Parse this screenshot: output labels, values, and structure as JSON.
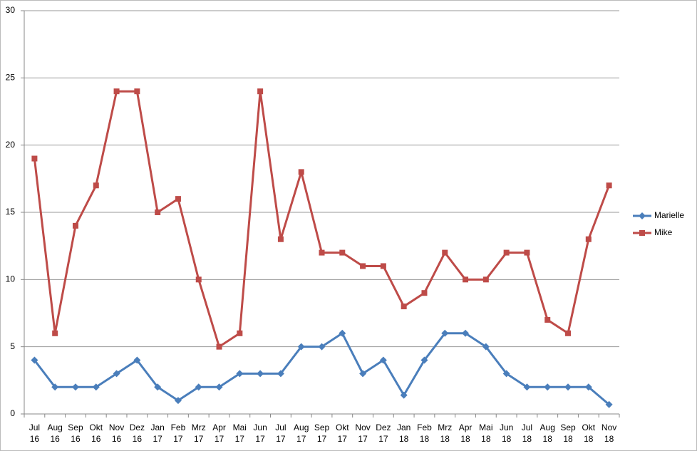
{
  "chart_data": {
    "type": "line",
    "categories": [
      "Jul 16",
      "Aug 16",
      "Sep 16",
      "Okt 16",
      "Nov 16",
      "Dez 16",
      "Jan 17",
      "Feb 17",
      "Mrz 17",
      "Apr 17",
      "Mai 17",
      "Jun 17",
      "Jul 17",
      "Aug 17",
      "Sep 17",
      "Okt 17",
      "Nov 17",
      "Dez 17",
      "Jan 18",
      "Feb 18",
      "Mrz 18",
      "Apr 18",
      "Mai 18",
      "Jun 18",
      "Jul 18",
      "Aug 18",
      "Sep 18",
      "Okt 18",
      "Nov 18"
    ],
    "series": [
      {
        "name": "Marielle",
        "color": "#4a7ebb",
        "marker": "diamond",
        "values": [
          4,
          2,
          2,
          2,
          3,
          4,
          2,
          1,
          2,
          2,
          3,
          3,
          3,
          5,
          5,
          6,
          3,
          4,
          1.4,
          4,
          6,
          6,
          5,
          3,
          2,
          2,
          2,
          2,
          0.7
        ]
      },
      {
        "name": "Mike",
        "color": "#be4b48",
        "marker": "square",
        "values": [
          19,
          6,
          14,
          17,
          24,
          24,
          15,
          16,
          10,
          5,
          6,
          24,
          13,
          18,
          12,
          12,
          11,
          11,
          8,
          9,
          12,
          10,
          10,
          12,
          12,
          7,
          6,
          13,
          17
        ]
      }
    ],
    "ylim": [
      0,
      30
    ],
    "yticks": [
      0,
      5,
      10,
      15,
      20,
      25,
      30
    ],
    "grid": true,
    "legend": "right"
  }
}
